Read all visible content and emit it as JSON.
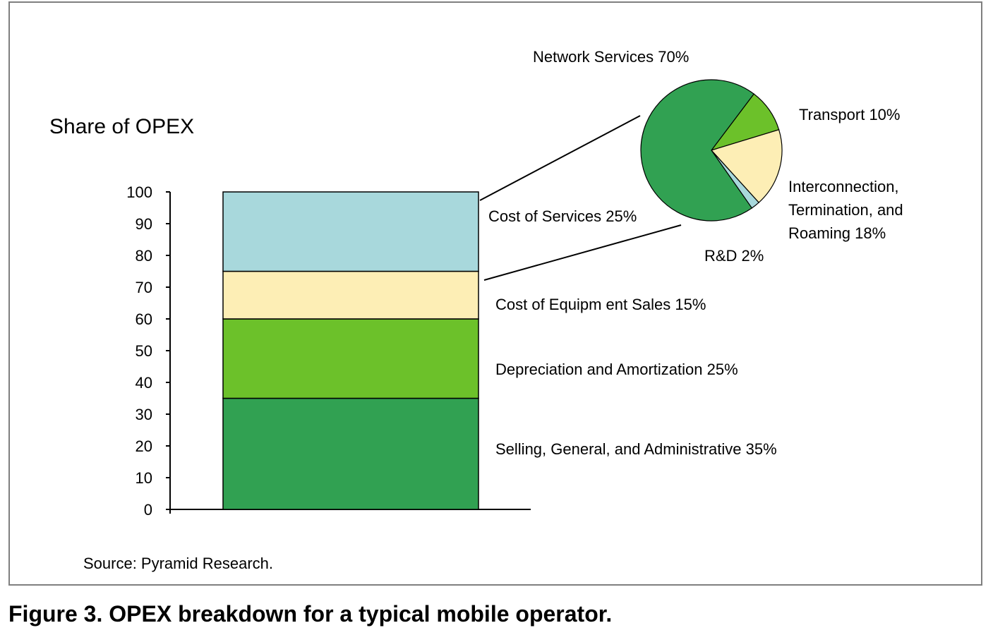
{
  "caption": "Figure 3. OPEX breakdown for a typical mobile operator.",
  "chart_data": [
    {
      "type": "bar",
      "stacked": true,
      "title": "Share of OPEX",
      "source": "Source: Pyramid Research.",
      "ylim": [
        0,
        100
      ],
      "yticks": [
        "0",
        "10",
        "20",
        "30",
        "40",
        "50",
        "60",
        "70",
        "80",
        "90",
        "100"
      ],
      "series": [
        {
          "name": "Selling, General, and Administrative",
          "value": 35,
          "label": "Selling, General, and Administrative 35%",
          "color": "#31a152"
        },
        {
          "name": "Depreciation and Amortization",
          "value": 25,
          "label": "Depreciation and Amortization 25%",
          "color": "#6cc12a"
        },
        {
          "name": "Cost of Equipment Sales",
          "value": 15,
          "label": "Cost of Equipm ent Sales 15%",
          "color": "#fdeeb5"
        },
        {
          "name": "Cost of Services",
          "value": 25,
          "label": "Cost of Services 25%",
          "color": "#a8d8dc"
        }
      ]
    },
    {
      "type": "pie",
      "breakdown_of": "Cost of Services",
      "slices": [
        {
          "name": "Network Services",
          "value": 70,
          "label": "Network Services 70%",
          "color": "#31a152"
        },
        {
          "name": "Transport",
          "value": 10,
          "label": "Transport 10%",
          "color": "#6cc12a"
        },
        {
          "name": "Interconnection, Termination, and Roaming",
          "value": 18,
          "label_lines": [
            "Interconnection,",
            "Termination, and",
            "Roaming 18%"
          ],
          "color": "#fdeeb5"
        },
        {
          "name": "R&D",
          "value": 2,
          "label": "R&D 2%",
          "color": "#a8d8dc"
        }
      ]
    }
  ]
}
